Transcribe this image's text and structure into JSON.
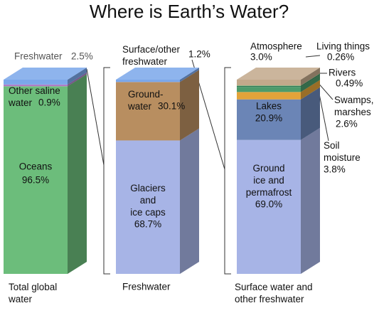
{
  "title": "Where is Earth’s Water?",
  "chart_data": [
    {
      "type": "stacked-column",
      "category": "Total global\nwater",
      "series": [
        {
          "name": "Oceans",
          "color": "#6cbd7b",
          "values": [
            96.5
          ],
          "value_labels": [
            "96.5%"
          ]
        },
        {
          "name": "Other saline\nwater",
          "color": "#b07cc6",
          "values": [
            0.9
          ],
          "value_labels": [
            "0.9%"
          ]
        },
        {
          "name": "Freshwater",
          "color": "#7ba7ea",
          "values": [
            2.5
          ],
          "value_labels": [
            "2.5%"
          ]
        }
      ]
    },
    {
      "type": "stacked-column",
      "category": "Freshwater",
      "series": [
        {
          "name": "Glaciers\nand\nice caps",
          "color": "#a7b4e6",
          "values": [
            68.7
          ],
          "value_labels": [
            "68.7%"
          ]
        },
        {
          "name": "Ground-\nwater",
          "color": "#b88e60",
          "values": [
            30.1
          ],
          "value_labels": [
            "30.1%"
          ]
        },
        {
          "name": "Surface/other\nfreshwater",
          "color": "#7ba7ea",
          "values": [
            1.2
          ],
          "value_labels": [
            "1.2%"
          ]
        }
      ]
    },
    {
      "type": "stacked-column",
      "category": "Surface water and\nother freshwater",
      "series": [
        {
          "name": "Ground\nice and\npermafrost",
          "color": "#a7b4e6",
          "values": [
            69.0
          ],
          "value_labels": [
            "69.0%"
          ]
        },
        {
          "name": "Lakes",
          "color": "#6b85b6",
          "values": [
            20.9
          ],
          "value_labels": [
            "20.9%"
          ]
        },
        {
          "name": "Soil\nmoisture",
          "color": "#e2a33a",
          "values": [
            3.8
          ],
          "value_labels": [
            "3.8%"
          ]
        },
        {
          "name": "Swamps,\nmarshes",
          "color": "#4d9b6b",
          "values": [
            2.6
          ],
          "value_labels": [
            "2.6%"
          ]
        },
        {
          "name": "Rivers",
          "color": "#2e7a56",
          "values": [
            0.49
          ],
          "value_labels": [
            "0.49%"
          ]
        },
        {
          "name": "Living things",
          "color": "#5fa862",
          "values": [
            0.26
          ],
          "value_labels": [
            "0.26%"
          ]
        },
        {
          "name": "Atmosphere",
          "color": "#c2a98b",
          "values": [
            3.0
          ],
          "value_labels": [
            "3.0%"
          ]
        }
      ]
    }
  ]
}
